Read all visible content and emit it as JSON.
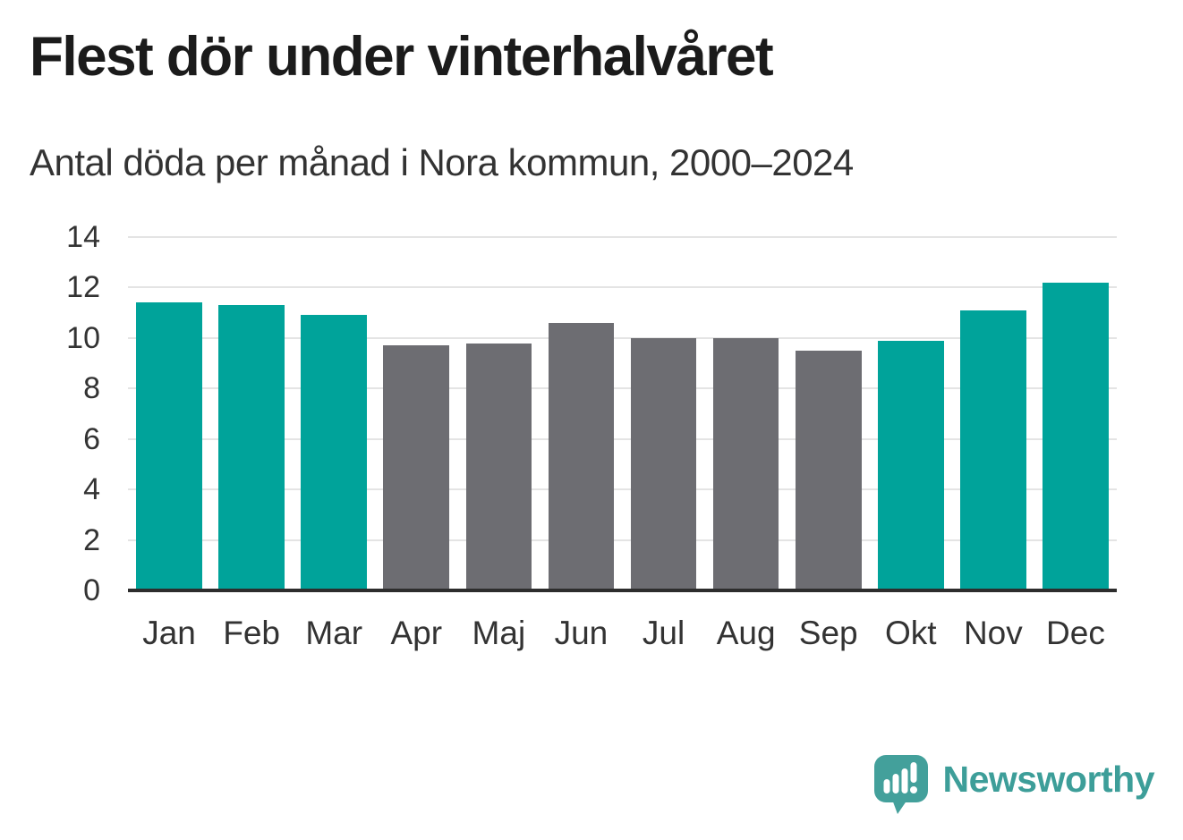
{
  "chart_data": {
    "type": "bar",
    "title": "Flest dör under vinterhalvåret",
    "subtitle": "Antal döda per månad i Nora kommun, 2000–2024",
    "categories": [
      "Jan",
      "Feb",
      "Mar",
      "Apr",
      "Maj",
      "Jun",
      "Jul",
      "Aug",
      "Sep",
      "Okt",
      "Nov",
      "Dec"
    ],
    "values": [
      11.4,
      11.3,
      10.9,
      9.7,
      9.8,
      10.6,
      10.0,
      10.0,
      9.5,
      9.9,
      11.1,
      12.2
    ],
    "bar_colors": [
      "teal",
      "teal",
      "teal",
      "gray",
      "gray",
      "gray",
      "gray",
      "gray",
      "gray",
      "teal",
      "teal",
      "teal"
    ],
    "xlabel": "",
    "ylabel": "",
    "ylim": [
      0,
      14
    ],
    "yticks": [
      0,
      2,
      4,
      6,
      8,
      10,
      12,
      14
    ],
    "grid": true,
    "legend": false
  },
  "colors": {
    "teal": "#00a39a",
    "gray": "#6d6d72",
    "gridline": "#e4e4e4",
    "axis": "#2d2d2d",
    "tick_text": "#333333",
    "title_text": "#1b1b1b",
    "logo": "#43a09b",
    "logo_text": "#3d9e99"
  },
  "footer": {
    "brand": "Newsworthy"
  }
}
